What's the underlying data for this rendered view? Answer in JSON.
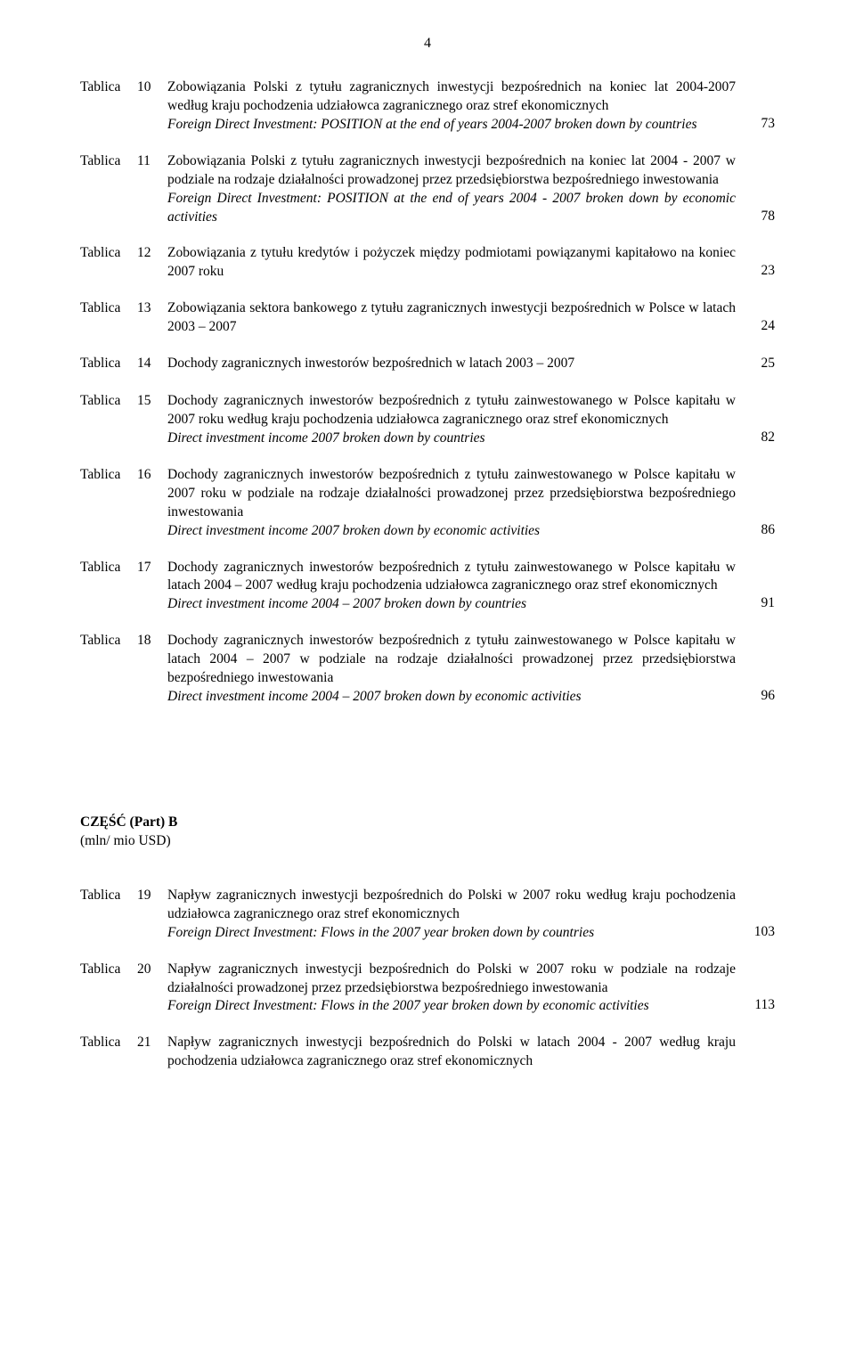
{
  "page_number": "4",
  "label_word": "Tablica",
  "entries": [
    {
      "num": "10",
      "lines": [
        {
          "text": "Zobowiązania Polski z tytułu zagranicznych inwestycji bezpośrednich na koniec lat 2004-2007 według kraju pochodzenia udziałowca zagranicznego oraz stref ekonomicznych",
          "italic": false
        },
        {
          "text": "Foreign Direct Investment: POSITION at the end of years 2004-2007  broken down by countries",
          "italic": true
        }
      ],
      "page": "73"
    },
    {
      "num": "11",
      "lines": [
        {
          "text": "Zobowiązania Polski z tytułu zagranicznych inwestycji bezpośrednich na koniec lat 2004 - 2007 w podziale na rodzaje działalności prowadzonej przez przedsiębiorstwa bezpośredniego inwestowania",
          "italic": false
        },
        {
          "text": "Foreign Direct Investment: POSITION at the end of years 2004 - 2007 broken down by economic activities",
          "italic": true
        }
      ],
      "page": "78"
    },
    {
      "num": "12",
      "lines": [
        {
          "text": "Zobowiązania z tytułu kredytów i pożyczek między podmiotami powiązanymi kapitałowo na koniec 2007 roku",
          "italic": false
        }
      ],
      "page": "23"
    },
    {
      "num": "13",
      "lines": [
        {
          "text": "Zobowiązania sektora bankowego z tytułu zagranicznych inwestycji bezpośrednich w Polsce w latach 2003 – 2007",
          "italic": false
        }
      ],
      "page": "24"
    },
    {
      "num": "14",
      "lines": [
        {
          "text": "Dochody zagranicznych inwestorów bezpośrednich w latach 2003 – 2007",
          "italic": false
        }
      ],
      "page": "25"
    },
    {
      "num": "15",
      "lines": [
        {
          "text": "Dochody zagranicznych inwestorów bezpośrednich z tytułu zainwestowanego w Polsce kapitału w 2007 roku według kraju pochodzenia udziałowca zagranicznego oraz stref ekonomicznych",
          "italic": false
        },
        {
          "text": "Direct investment income 2007 broken down by countries",
          "italic": true
        }
      ],
      "page": "82"
    },
    {
      "num": "16",
      "lines": [
        {
          "text": "Dochody zagranicznych inwestorów bezpośrednich z tytułu zainwestowanego w Polsce kapitału w 2007 roku w podziale na rodzaje działalności prowadzonej przez przedsiębiorstwa bezpośredniego inwestowania",
          "italic": false
        },
        {
          "text": "Direct investment income 2007 broken down by economic activities",
          "italic": true
        }
      ],
      "page": "86"
    },
    {
      "num": "17",
      "lines": [
        {
          "text": "Dochody zagranicznych inwestorów bezpośrednich z tytułu zainwestowanego w Polsce kapitału w latach 2004 – 2007 według kraju pochodzenia udziałowca zagranicznego oraz stref ekonomicznych",
          "italic": false
        },
        {
          "text": "Direct investment income 2004 – 2007 broken down by countries",
          "italic": true
        }
      ],
      "page": "91"
    },
    {
      "num": "18",
      "lines": [
        {
          "text": "Dochody zagranicznych inwestorów bezpośrednich z tytułu zainwestowanego w Polsce kapitału w latach 2004 – 2007 w podziale na rodzaje działalności prowadzonej przez przedsiębiorstwa bezpośredniego inwestowania",
          "italic": false
        },
        {
          "text": "Direct investment income 2004 – 2007 broken down by economic activities",
          "italic": true
        }
      ],
      "page": "96"
    }
  ],
  "part_heading": {
    "line1": "CZĘŚĆ (Part) B",
    "line2": "(mln/ mio USD)"
  },
  "entries_b": [
    {
      "num": "19",
      "lines": [
        {
          "text": "Napływ zagranicznych inwestycji bezpośrednich do Polski w 2007 roku według kraju pochodzenia udziałowca zagranicznego oraz stref ekonomicznych",
          "italic": false
        },
        {
          "text": "Foreign Direct Investment: Flows in the 2007 year broken down by countries",
          "italic": true
        }
      ],
      "page": "103"
    },
    {
      "num": "20",
      "lines": [
        {
          "text": "Napływ zagranicznych inwestycji bezpośrednich do Polski w 2007 roku w podziale na rodzaje działalności prowadzonej przez przedsiębiorstwa bezpośredniego inwestowania",
          "italic": false
        },
        {
          "text": "Foreign Direct Investment: Flows in the 2007 year broken down by economic activities",
          "italic": true
        }
      ],
      "page": "113"
    },
    {
      "num": "21",
      "lines": [
        {
          "text": "Napływ zagranicznych inwestycji bezpośrednich do Polski w latach 2004 - 2007 według kraju pochodzenia udziałowca zagranicznego oraz stref ekonomicznych",
          "italic": false
        }
      ],
      "page": ""
    }
  ]
}
